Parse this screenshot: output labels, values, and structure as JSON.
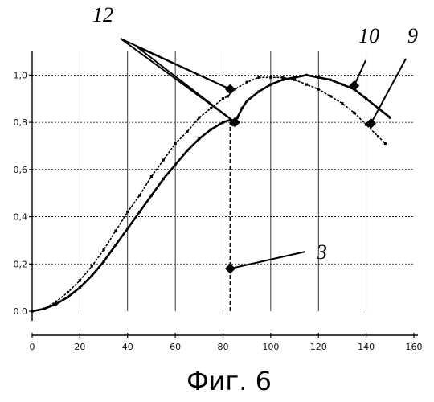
{
  "chart_data": {
    "type": "line",
    "title": "",
    "xlabel": "",
    "ylabel": "",
    "xlim": [
      0,
      160
    ],
    "ylim": [
      0,
      1.1
    ],
    "grid": true,
    "x_ticks": [
      0,
      20,
      40,
      60,
      80,
      100,
      120,
      140,
      160
    ],
    "x_tick_labels": [
      "0",
      "20",
      "40",
      "60",
      "80",
      "100",
      "120",
      "140",
      "160"
    ],
    "y_ticks": [
      0,
      0.2,
      0.4,
      0.6,
      0.8,
      1.0
    ],
    "y_tick_labels": [
      "0.0",
      "0,2",
      "0,4",
      "0,6",
      "0,8",
      "1,0"
    ],
    "series": [
      {
        "callout": "9",
        "style": "dotted-marker",
        "points": [
          [
            0,
            0
          ],
          [
            5,
            0.01
          ],
          [
            10,
            0.04
          ],
          [
            15,
            0.08
          ],
          [
            20,
            0.13
          ],
          [
            25,
            0.19
          ],
          [
            30,
            0.26
          ],
          [
            35,
            0.34
          ],
          [
            40,
            0.42
          ],
          [
            45,
            0.49
          ],
          [
            50,
            0.57
          ],
          [
            55,
            0.64
          ],
          [
            60,
            0.71
          ],
          [
            65,
            0.76
          ],
          [
            70,
            0.82
          ],
          [
            75,
            0.86
          ],
          [
            80,
            0.9
          ],
          [
            82,
            0.91
          ],
          [
            85,
            0.94
          ],
          [
            90,
            0.97
          ],
          [
            95,
            0.99
          ],
          [
            100,
            0.99
          ],
          [
            105,
            0.99
          ],
          [
            110,
            0.98
          ],
          [
            115,
            0.96
          ],
          [
            120,
            0.94
          ],
          [
            125,
            0.91
          ],
          [
            130,
            0.88
          ],
          [
            135,
            0.84
          ],
          [
            140,
            0.79
          ],
          [
            145,
            0.74
          ],
          [
            148,
            0.71
          ]
        ]
      },
      {
        "callout": "10",
        "style": "solid-marker",
        "points": [
          [
            0,
            0
          ],
          [
            5,
            0.01
          ],
          [
            10,
            0.03
          ],
          [
            15,
            0.06
          ],
          [
            20,
            0.1
          ],
          [
            25,
            0.15
          ],
          [
            30,
            0.21
          ],
          [
            35,
            0.28
          ],
          [
            40,
            0.35
          ],
          [
            45,
            0.42
          ],
          [
            50,
            0.49
          ],
          [
            55,
            0.56
          ],
          [
            60,
            0.62
          ],
          [
            65,
            0.68
          ],
          [
            70,
            0.73
          ],
          [
            75,
            0.77
          ],
          [
            80,
            0.8
          ],
          [
            83,
            0.81
          ],
          [
            84,
            0.79
          ],
          [
            86,
            0.82
          ],
          [
            88,
            0.86
          ],
          [
            90,
            0.89
          ],
          [
            95,
            0.93
          ],
          [
            100,
            0.96
          ],
          [
            105,
            0.98
          ],
          [
            110,
            0.99
          ],
          [
            115,
            1.0
          ],
          [
            120,
            0.99
          ],
          [
            125,
            0.98
          ],
          [
            130,
            0.96
          ],
          [
            135,
            0.94
          ],
          [
            140,
            0.9
          ],
          [
            145,
            0.86
          ],
          [
            150,
            0.82
          ]
        ]
      }
    ],
    "vertical_line": {
      "x": 83,
      "y_from": 0,
      "y_to": 0.8,
      "style": "dashed",
      "callout": "3"
    },
    "callout_markers": [
      {
        "label": "12",
        "x": 83,
        "y": 0.94
      },
      {
        "label": "12",
        "x": 85,
        "y": 0.8
      },
      {
        "label": "10",
        "x": 135,
        "y": 0.955
      },
      {
        "label": "9",
        "x": 142,
        "y": 0.795
      },
      {
        "label": "3",
        "x": 83,
        "y": 0.18
      }
    ],
    "callouts": [
      {
        "label": "12"
      },
      {
        "label": "10"
      },
      {
        "label": "9"
      },
      {
        "label": "3"
      }
    ],
    "caption": "Фиг. 6"
  }
}
